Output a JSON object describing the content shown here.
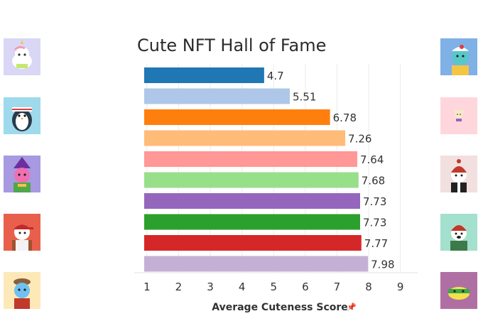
{
  "title": "Cute NFT Hall of Fame",
  "chart_data": {
    "type": "bar",
    "orientation": "horizontal",
    "title": "Cute NFT Hall of Fame",
    "xlabel": "Average Cuteness Score",
    "ylabel": "",
    "xlim": [
      0.6,
      9.5
    ],
    "xticks": [
      1,
      2,
      3,
      4,
      5,
      6,
      7,
      8,
      9
    ],
    "grid": true,
    "legend": "none",
    "values": [
      4.7,
      5.51,
      6.78,
      7.26,
      7.64,
      7.68,
      7.73,
      7.73,
      7.77,
      7.98
    ],
    "labels": [
      "4.7",
      "5.51",
      "6.78",
      "7.26",
      "7.64",
      "7.68",
      "7.73",
      "7.73",
      "7.77",
      "7.98"
    ],
    "colors": [
      "#1f77b4",
      "#aec7e8",
      "#ff7f0e",
      "#ffbb78",
      "#ff9896",
      "#98df8a",
      "#9467bd",
      "#2ca02c",
      "#d62728",
      "#c5b0d5"
    ]
  },
  "thumbnails": {
    "left": [
      {
        "icon": "unicorn-cat-icon",
        "bg": "#d9d7f5"
      },
      {
        "icon": "penguin-icon",
        "bg": "#9fd9ec"
      },
      {
        "icon": "witch-creature-icon",
        "bg": "#a79ae0"
      },
      {
        "icon": "red-cap-bear-icon",
        "bg": "#e8604c"
      },
      {
        "icon": "blue-creature-icon",
        "bg": "#fde9b7"
      }
    ],
    "right": [
      {
        "icon": "cap-bird-icon",
        "bg": "#7fb0e6"
      },
      {
        "icon": "small-bear-icon",
        "bg": "#ffd6dc"
      },
      {
        "icon": "beanie-bear-icon",
        "bg": "#f2dfe0"
      },
      {
        "icon": "green-hat-bear-icon",
        "bg": "#a3e0cd"
      },
      {
        "icon": "frog-icon",
        "bg": "#b06fa3"
      }
    ]
  }
}
